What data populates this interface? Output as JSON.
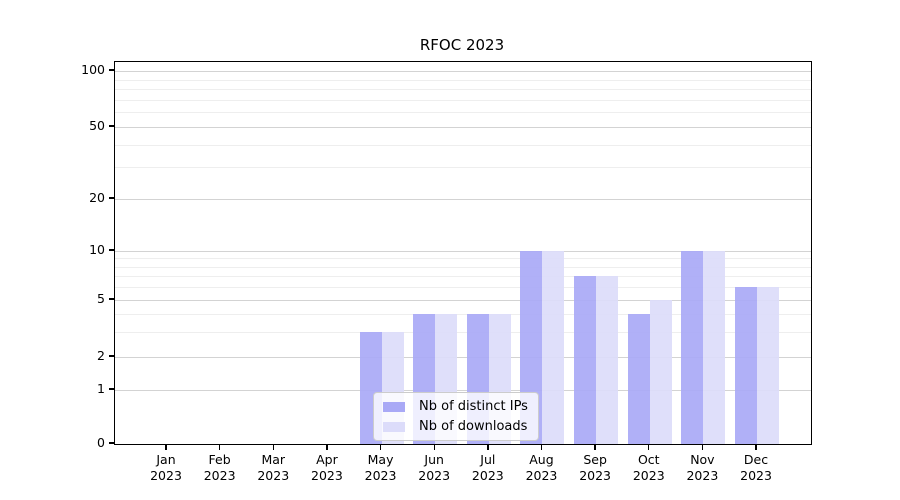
{
  "figure": {
    "title": "RFOC 2023"
  },
  "colors": {
    "bar_ips": "#a9a9f6",
    "bar_downloads": "#dcdcfa",
    "grid_major": "#d3d3d3",
    "grid_minor": "#eeeeee",
    "axis": "#000000",
    "legend_border": "#cccccc"
  },
  "chart_data": {
    "type": "bar",
    "title": "RFOC 2023",
    "categories": [
      "Jan 2023",
      "Feb 2023",
      "Mar 2023",
      "Apr 2023",
      "May 2023",
      "Jun 2023",
      "Jul 2023",
      "Aug 2023",
      "Sep 2023",
      "Oct 2023",
      "Nov 2023",
      "Dec 2023"
    ],
    "series": [
      {
        "name": "Nb of distinct IPs",
        "color": "#a9a9f6",
        "values": [
          0,
          0,
          0,
          0,
          3,
          4,
          4,
          10,
          7,
          4,
          10,
          6
        ]
      },
      {
        "name": "Nb of downloads",
        "color": "#dcdcfa",
        "values": [
          0,
          0,
          0,
          0,
          3,
          4,
          4,
          10,
          7,
          5,
          10,
          6
        ]
      }
    ],
    "xlabel": "",
    "ylabel": "",
    "yscale": "symlog",
    "yticks": [
      0,
      1,
      2,
      5,
      10,
      20,
      50,
      100
    ],
    "yticks_minor": [
      3,
      4,
      6,
      7,
      8,
      9,
      30,
      40,
      60,
      70,
      80,
      90
    ],
    "ylim": [
      0,
      110
    ],
    "grid": true,
    "legend_position": "lower center"
  }
}
